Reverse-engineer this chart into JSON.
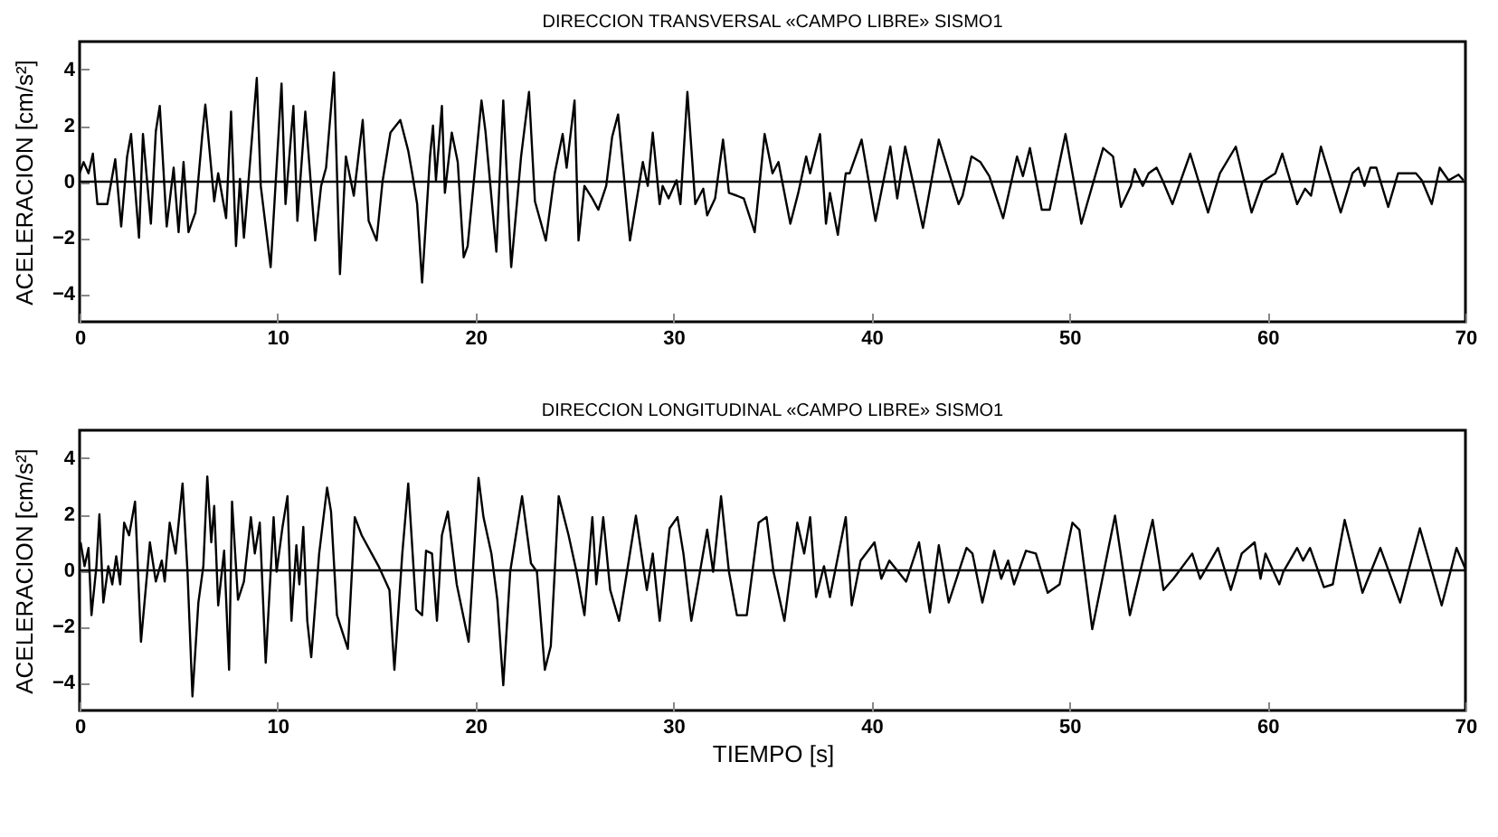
{
  "chart_data": [
    {
      "type": "line",
      "title": "DIRECCION TRANSVERSAL «CAMPO LIBRE» SISMO1",
      "ylabel": "ACELERACION [cm/s²]",
      "xlim": [
        0,
        70
      ],
      "ylim": [
        -5,
        5
      ],
      "xticks": [
        0,
        10,
        20,
        30,
        40,
        50,
        60,
        70
      ],
      "yticks": [
        -4,
        -2,
        0,
        2,
        4
      ],
      "grid": false,
      "ref_lines": [
        {
          "axis": "y",
          "value": 0
        }
      ],
      "series": [
        {
          "color": "#000000",
          "x": [
            0,
            0.2,
            0.45,
            0.67,
            0.9,
            1.4,
            1.8,
            2.1,
            2.4,
            2.6,
            2.8,
            3.0,
            3.2,
            3.6,
            3.85,
            4.05,
            4.4,
            4.75,
            5.0,
            5.25,
            5.5,
            5.85,
            6.2,
            6.35,
            6.8,
            7.0,
            7.4,
            7.65,
            7.9,
            8.1,
            8.3,
            8.95,
            9.15,
            9.65,
            10.2,
            10.4,
            10.8,
            11.0,
            11.4,
            11.9,
            12.2,
            12.45,
            12.85,
            13.15,
            13.45,
            13.85,
            14.3,
            14.6,
            15.0,
            15.3,
            15.7,
            16.2,
            16.6,
            16.8,
            17.05,
            17.3,
            17.7,
            17.85,
            18.0,
            18.3,
            18.45,
            18.8,
            19.1,
            19.4,
            19.6,
            20.3,
            20.5,
            21.05,
            21.4,
            21.8,
            22.3,
            22.7,
            23.0,
            23.55,
            24.0,
            24.4,
            24.6,
            25.0,
            25.2,
            25.5,
            25.9,
            26.2,
            26.6,
            26.9,
            27.2,
            27.8,
            28.45,
            28.7,
            28.95,
            29.3,
            29.45,
            29.75,
            30.15,
            30.35,
            30.7,
            31.1,
            31.5,
            31.7,
            32.1,
            32.5,
            32.8,
            33.2,
            33.55,
            34.1,
            34.6,
            35.0,
            35.3,
            35.9,
            36.3,
            36.7,
            36.9,
            37.4,
            37.7,
            37.9,
            38.3,
            38.7,
            38.9,
            39.5,
            40.2,
            40.95,
            41.3,
            41.7,
            42.6,
            43.4,
            44.4,
            44.6,
            45.05,
            45.5,
            45.95,
            46.65,
            47.35,
            47.65,
            48.0,
            48.6,
            49.0,
            49.8,
            50.6,
            51.7,
            52.2,
            52.6,
            53.1,
            53.3,
            53.7,
            54.0,
            54.4,
            54.7,
            55.2,
            56.1,
            57.0,
            57.6,
            58.4,
            59.2,
            59.75,
            60.4,
            60.75,
            61.5,
            61.9,
            62.2,
            62.7,
            63.7,
            64.3,
            64.6,
            64.9,
            65.2,
            65.5,
            66.1,
            66.6,
            67.5,
            67.8,
            68.3,
            68.7,
            69.15,
            69.65,
            69.9
          ],
          "values": [
            0.3,
            0.7,
            0.3,
            1.0,
            -0.8,
            -0.8,
            0.8,
            -1.6,
            0.9,
            1.7,
            -0.2,
            -2.0,
            1.7,
            -1.5,
            1.8,
            2.7,
            -1.6,
            0.5,
            -1.8,
            0.7,
            -1.8,
            -1.1,
            1.7,
            2.75,
            -0.7,
            0.3,
            -1.3,
            2.5,
            -2.3,
            0.1,
            -2.0,
            3.7,
            -0.15,
            -3.05,
            3.5,
            -0.8,
            2.7,
            -1.4,
            2.5,
            -2.1,
            -0.15,
            0.5,
            3.9,
            -3.3,
            0.9,
            -0.5,
            2.2,
            -1.4,
            -2.1,
            0,
            1.75,
            2.2,
            1.1,
            0.3,
            -0.8,
            -3.6,
            0.9,
            2.0,
            0.05,
            2.7,
            -0.4,
            1.75,
            0.7,
            -2.7,
            -2.3,
            2.9,
            1.8,
            -2.5,
            2.9,
            -3.05,
            0.9,
            3.2,
            -0.7,
            -2.1,
            0.3,
            1.7,
            0.5,
            2.9,
            -2.1,
            -0.15,
            -0.6,
            -1.0,
            -0.15,
            1.6,
            2.4,
            -2.1,
            0.7,
            -0.15,
            1.75,
            -0.8,
            -0.15,
            -0.6,
            0.05,
            -0.8,
            3.2,
            -0.8,
            -0.25,
            -1.2,
            -0.6,
            1.5,
            -0.4,
            -0.5,
            -0.6,
            -1.8,
            1.7,
            0.3,
            0.7,
            -1.5,
            -0.4,
            0.9,
            0.3,
            1.7,
            -1.5,
            -0.4,
            -1.9,
            0.3,
            0.3,
            1.5,
            -1.4,
            1.25,
            -0.6,
            1.25,
            -1.65,
            1.5,
            -0.8,
            -0.5,
            0.9,
            0.7,
            0.2,
            -1.3,
            0.9,
            0.2,
            1.2,
            -1.0,
            -1.0,
            1.7,
            -1.5,
            1.2,
            0.9,
            -0.9,
            -0.15,
            0.45,
            -0.15,
            0.3,
            0.5,
            0.05,
            -0.8,
            1.0,
            -1.1,
            0.3,
            1.25,
            -1.1,
            0,
            0.3,
            1.0,
            -0.8,
            -0.25,
            -0.5,
            1.25,
            -1.1,
            0.3,
            0.5,
            -0.15,
            0.5,
            0.5,
            -0.9,
            0.3,
            0.3,
            0.05,
            -0.8,
            0.5,
            0.05,
            0.25,
            0.05
          ]
        }
      ]
    },
    {
      "type": "line",
      "title": "DIRECCION LONGITUDINAL «CAMPO LIBRE» SISMO1",
      "xlabel": "TIEMPO [s]",
      "ylabel": "ACELERACION [cm/s²]",
      "xlim": [
        0,
        70
      ],
      "ylim": [
        -5,
        5
      ],
      "xticks": [
        0,
        10,
        20,
        30,
        40,
        50,
        60,
        70
      ],
      "yticks": [
        -4,
        -2,
        0,
        2,
        4
      ],
      "grid": false,
      "ref_lines": [
        {
          "axis": "y",
          "value": 0
        }
      ],
      "series": [
        {
          "color": "#000000",
          "x": [
            0.05,
            0.25,
            0.45,
            0.6,
            0.85,
            1.0,
            1.2,
            1.45,
            1.65,
            1.85,
            2.05,
            2.25,
            2.5,
            2.8,
            3.1,
            3.55,
            3.85,
            4.15,
            4.3,
            4.55,
            4.85,
            5.2,
            5.45,
            5.7,
            6.0,
            6.25,
            6.45,
            6.65,
            6.8,
            7.0,
            7.3,
            7.55,
            7.7,
            8.0,
            8.3,
            8.65,
            8.85,
            9.1,
            9.4,
            9.8,
            9.95,
            10.25,
            10.5,
            10.7,
            10.95,
            11.1,
            11.3,
            11.5,
            11.7,
            12.1,
            12.5,
            12.7,
            13.0,
            13.55,
            13.9,
            14.25,
            14.75,
            15.1,
            15.65,
            15.9,
            16.3,
            16.6,
            17.0,
            17.3,
            17.5,
            17.8,
            18.05,
            18.3,
            18.6,
            19.05,
            19.65,
            20.15,
            20.4,
            20.8,
            21.1,
            21.4,
            21.75,
            22.35,
            22.8,
            23.1,
            23.5,
            23.8,
            24.2,
            24.7,
            25.1,
            25.5,
            25.9,
            26.1,
            26.45,
            26.8,
            27.25,
            27.65,
            28.1,
            28.65,
            28.95,
            29.3,
            29.8,
            30.2,
            30.5,
            30.9,
            31.25,
            31.7,
            32.0,
            32.4,
            32.8,
            33.2,
            33.7,
            34.3,
            34.7,
            35.05,
            35.6,
            36.25,
            36.6,
            36.9,
            37.2,
            37.6,
            37.9,
            38.7,
            39.0,
            39.45,
            40.15,
            40.5,
            40.9,
            41.75,
            42.4,
            42.95,
            43.4,
            43.9,
            44.8,
            45.1,
            45.6,
            46.2,
            46.55,
            46.9,
            47.2,
            47.8,
            48.3,
            48.9,
            49.5,
            50.15,
            50.5,
            51.15,
            52.3,
            53.05,
            54.2,
            54.75,
            55.25,
            56.2,
            56.6,
            57.5,
            58.15,
            58.7,
            59.35,
            59.65,
            59.9,
            60.6,
            60.8,
            61.5,
            61.8,
            62.15,
            62.85,
            63.3,
            63.9,
            64.8,
            65.7,
            66.7,
            67.7,
            68.8,
            69.55,
            70.0
          ],
          "values": [
            1.0,
            0.15,
            0.8,
            -1.6,
            0.15,
            2.0,
            -1.15,
            0.15,
            -0.5,
            0.5,
            -0.5,
            1.7,
            1.25,
            2.45,
            -2.55,
            1.0,
            -0.4,
            0.35,
            -0.4,
            1.7,
            0.6,
            3.1,
            -0.05,
            -4.5,
            -1.15,
            0.15,
            3.35,
            1.0,
            2.3,
            -1.25,
            0.7,
            -3.55,
            2.45,
            -1.05,
            -0.4,
            1.9,
            0.6,
            1.7,
            -3.3,
            1.9,
            -0.05,
            1.55,
            2.65,
            -1.8,
            0.9,
            -0.5,
            1.55,
            -1.8,
            -3.1,
            0.6,
            2.95,
            2.1,
            -1.6,
            -2.8,
            1.9,
            1.25,
            0.6,
            0.15,
            -0.7,
            -3.55,
            0.6,
            3.1,
            -1.4,
            -1.6,
            0.7,
            0.6,
            -1.8,
            1.25,
            2.1,
            -0.5,
            -2.55,
            3.3,
            1.9,
            0.6,
            -1.05,
            -4.1,
            -0.05,
            2.65,
            0.25,
            -0.05,
            -3.55,
            -2.7,
            2.65,
            1.25,
            -0.05,
            -1.6,
            1.9,
            -0.5,
            1.9,
            -0.7,
            -1.8,
            -0.05,
            1.95,
            -0.7,
            0.6,
            -1.8,
            1.5,
            1.9,
            0.6,
            -1.8,
            -0.4,
            1.45,
            -0.05,
            2.65,
            -0.05,
            -1.6,
            -1.6,
            1.7,
            1.9,
            -0.05,
            -1.8,
            1.7,
            0.6,
            1.9,
            -0.95,
            0.15,
            -0.95,
            1.9,
            -1.25,
            0.35,
            1.0,
            -0.3,
            0.35,
            -0.4,
            1.0,
            -1.5,
            0.9,
            -1.15,
            0.8,
            0.6,
            -1.15,
            0.7,
            -0.3,
            0.35,
            -0.5,
            0.7,
            0.6,
            -0.8,
            -0.5,
            1.7,
            1.45,
            -2.1,
            1.95,
            -1.6,
            1.8,
            -0.7,
            -0.3,
            0.6,
            -0.3,
            0.8,
            -0.7,
            0.6,
            1.0,
            -0.3,
            0.6,
            -0.5,
            -0.05,
            0.8,
            0.35,
            0.8,
            -0.6,
            -0.5,
            1.8,
            -0.8,
            0.8,
            -1.15,
            1.5,
            -1.25,
            0.8,
            0.05
          ]
        }
      ]
    }
  ]
}
